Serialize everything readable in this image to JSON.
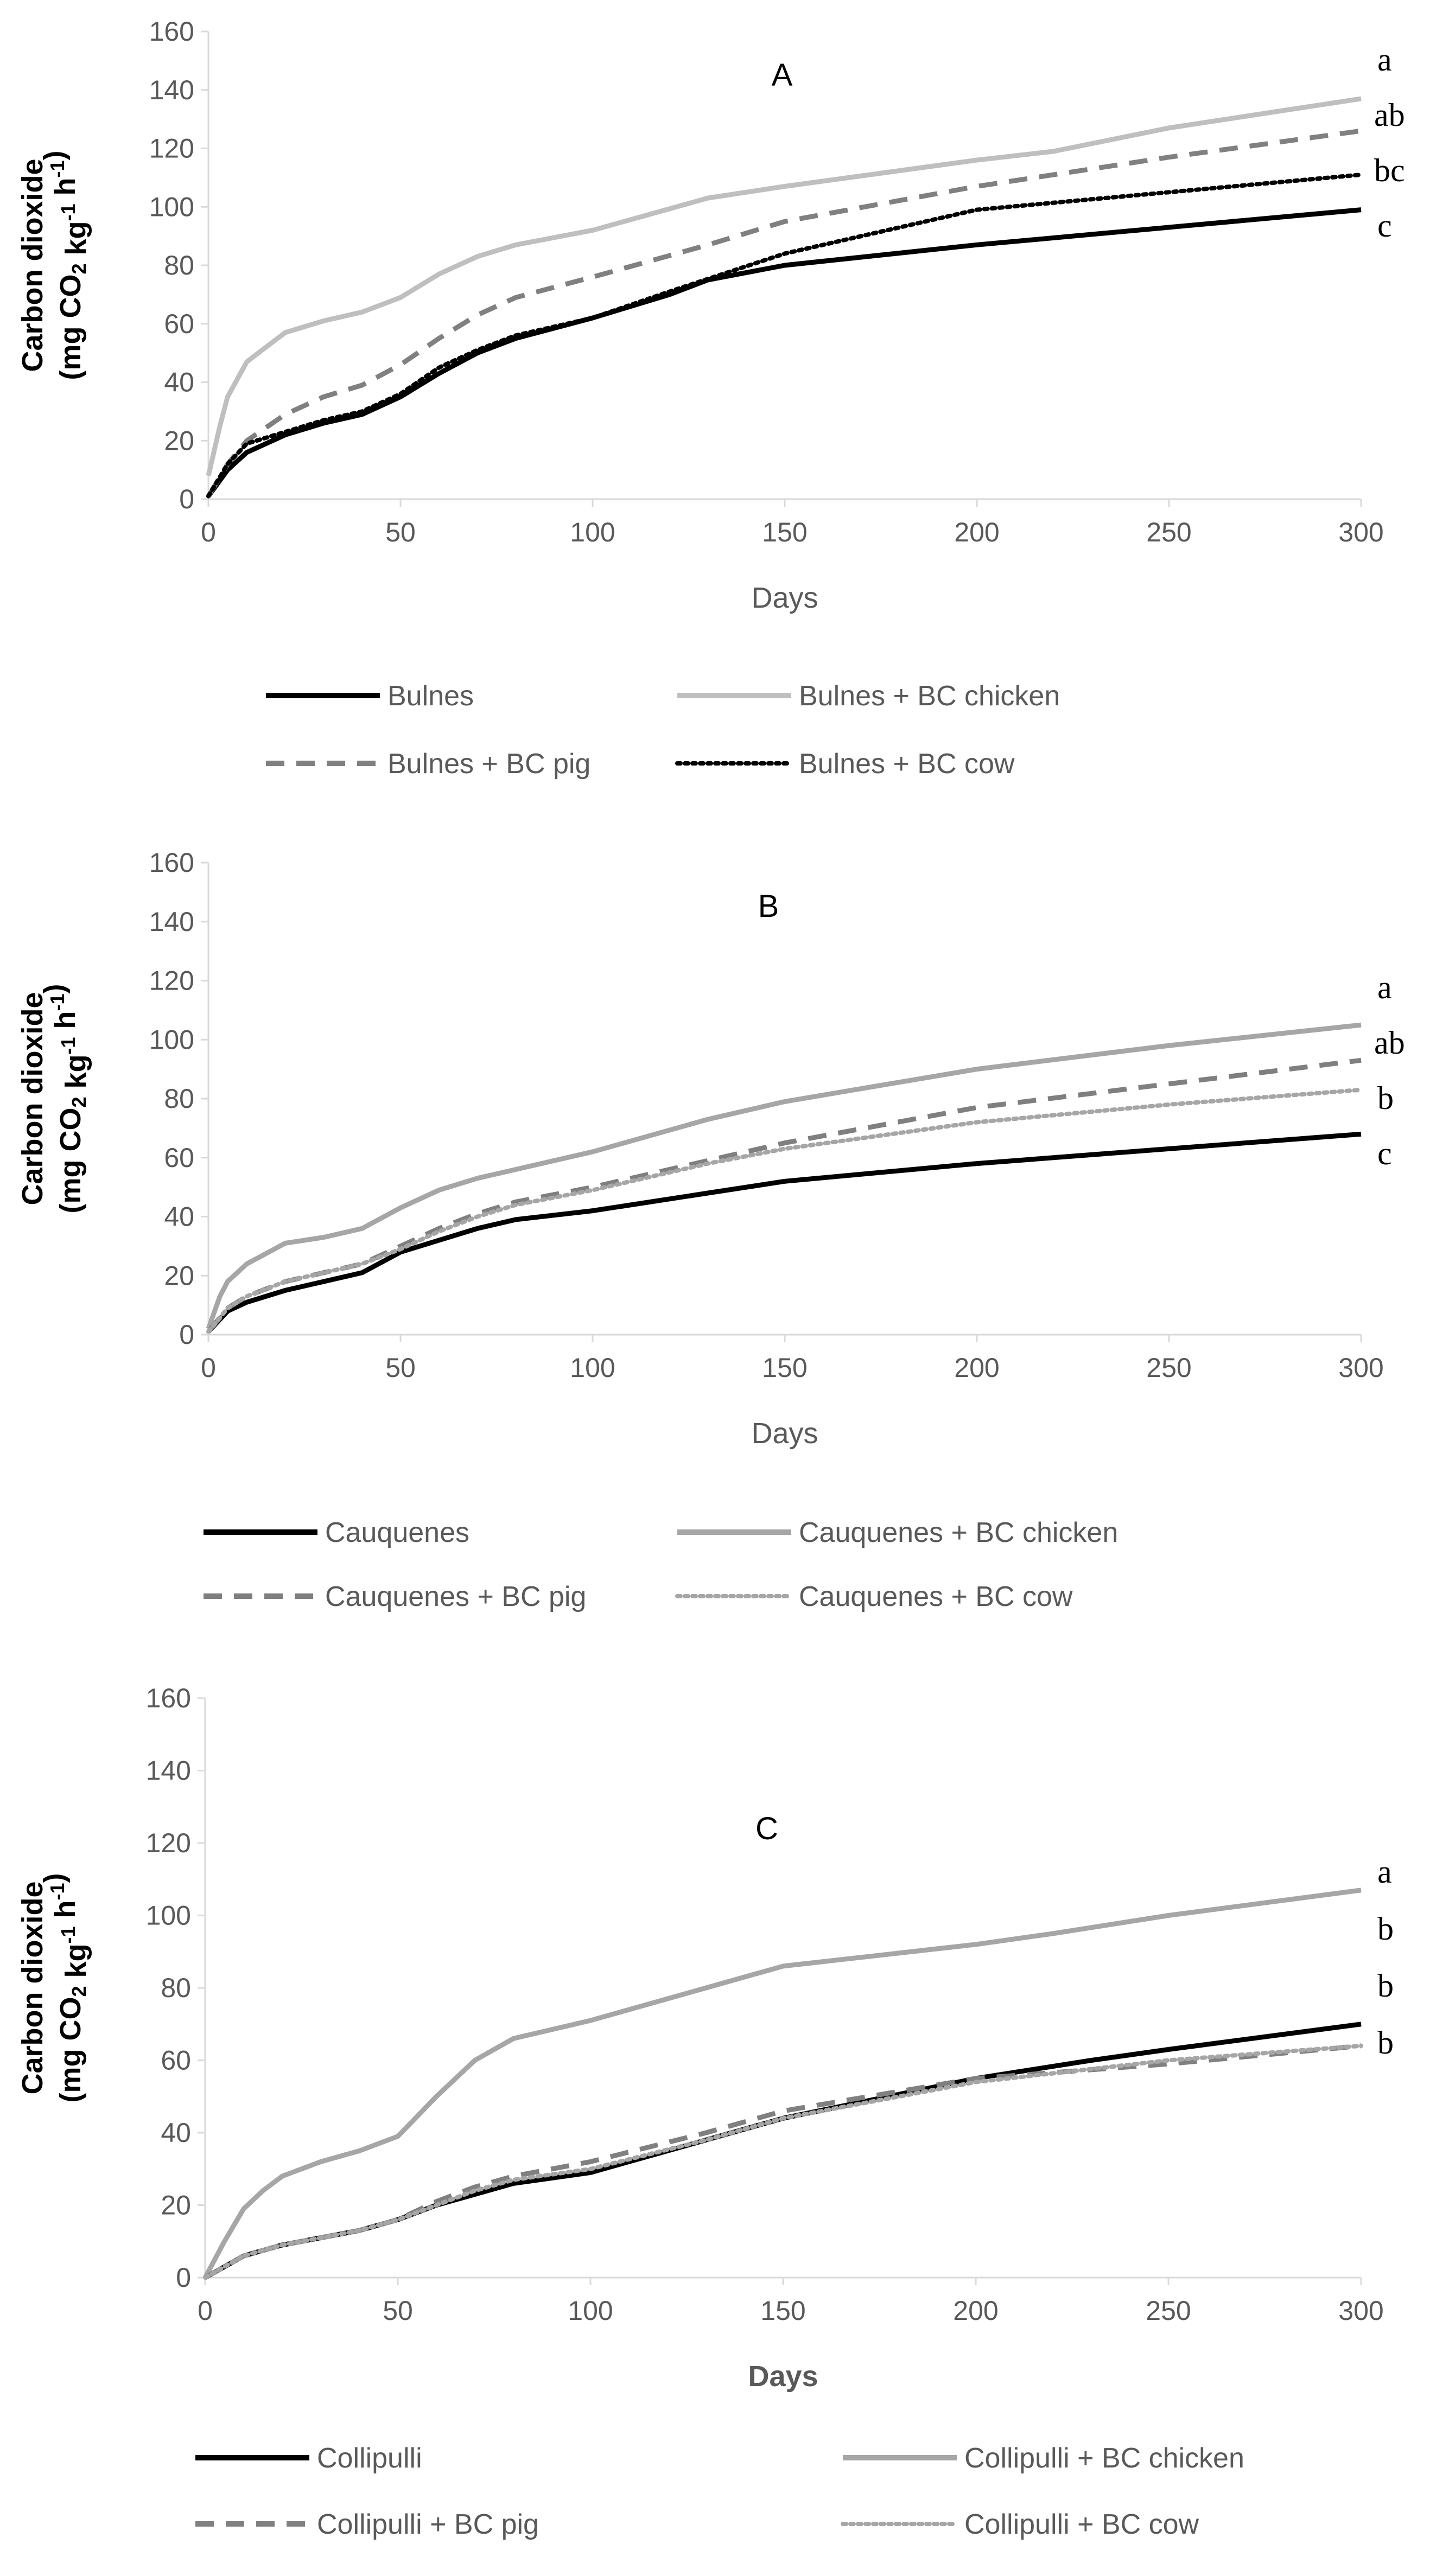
{
  "figure": {
    "colors": {
      "axis": "#d9d9d9",
      "tick_text": "#595959",
      "label_text": "#000000",
      "black": "#000000",
      "light_gray": "#bfbfbf",
      "mid_gray": "#808080",
      "dark_gray": "#7f7f7f"
    }
  },
  "chart_data": [
    {
      "type": "line",
      "title": "A",
      "xlabel": "Days",
      "ylabel_line1": "Carbon dioxide",
      "ylabel_line2": "(mg CO2 kg-1 h-1)",
      "xlim": [
        0,
        300
      ],
      "ylim": [
        0,
        160
      ],
      "xticks": [
        0,
        50,
        100,
        150,
        200,
        250,
        300
      ],
      "yticks": [
        0,
        20,
        40,
        60,
        80,
        100,
        120,
        140,
        160
      ],
      "grid": false,
      "legend_position": "bottom",
      "series": [
        {
          "name": "Bulnes",
          "style": "solid",
          "color": "#000000",
          "x": [
            0,
            5,
            10,
            20,
            30,
            40,
            50,
            60,
            70,
            80,
            100,
            120,
            130,
            150,
            200,
            250,
            300
          ],
          "values": [
            1,
            10,
            16,
            22,
            26,
            29,
            35,
            43,
            50,
            55,
            62,
            70,
            75,
            80,
            87,
            93,
            99
          ],
          "significance": "c"
        },
        {
          "name": "Bulnes + BC chicken",
          "style": "solid",
          "color": "#bfbfbf",
          "x": [
            0,
            3,
            5,
            10,
            15,
            20,
            30,
            40,
            50,
            60,
            70,
            80,
            100,
            130,
            150,
            200,
            220,
            250,
            300
          ],
          "values": [
            8,
            25,
            35,
            47,
            52,
            57,
            61,
            64,
            69,
            77,
            83,
            87,
            92,
            103,
            107,
            116,
            119,
            127,
            137
          ],
          "significance": "a"
        },
        {
          "name": "Bulnes + BC pig",
          "style": "dashed",
          "color": "#808080",
          "x": [
            0,
            5,
            10,
            20,
            30,
            40,
            50,
            60,
            70,
            80,
            100,
            130,
            150,
            200,
            250,
            300
          ],
          "values": [
            1,
            12,
            20,
            29,
            35,
            39,
            46,
            55,
            63,
            69,
            76,
            87,
            95,
            107,
            117,
            126
          ],
          "significance": "ab"
        },
        {
          "name": "Bulnes + BC cow",
          "style": "dotted",
          "color": "#000000",
          "x": [
            0,
            5,
            10,
            20,
            30,
            40,
            50,
            60,
            70,
            80,
            100,
            120,
            150,
            200,
            250,
            300
          ],
          "values": [
            1,
            12,
            19,
            23,
            27,
            30,
            36,
            45,
            51,
            56,
            62,
            71,
            84,
            99,
            105,
            111
          ],
          "significance": "bc"
        }
      ],
      "legend": [
        {
          "label": "Bulnes",
          "style": "solid",
          "color": "#000000"
        },
        {
          "label": "Bulnes + BC chicken",
          "style": "solid",
          "color": "#bfbfbf"
        },
        {
          "label": "Bulnes + BC pig",
          "style": "dashed",
          "color": "#808080"
        },
        {
          "label": "Bulnes + BC cow",
          "style": "dotted",
          "color": "#000000"
        }
      ]
    },
    {
      "type": "line",
      "title": "B",
      "xlabel": "Days",
      "ylabel_line1": "Carbon dioxide",
      "ylabel_line2": "(mg CO2 kg-1 h-1)",
      "xlim": [
        0,
        300
      ],
      "ylim": [
        0,
        160
      ],
      "xticks": [
        0,
        50,
        100,
        150,
        200,
        250,
        300
      ],
      "yticks": [
        0,
        20,
        40,
        60,
        80,
        100,
        120,
        140,
        160
      ],
      "grid": false,
      "legend_position": "bottom",
      "series": [
        {
          "name": "Cauquenes",
          "style": "solid",
          "color": "#000000",
          "x": [
            0,
            5,
            10,
            20,
            30,
            40,
            50,
            60,
            70,
            80,
            100,
            130,
            150,
            200,
            250,
            300
          ],
          "values": [
            1,
            8,
            11,
            15,
            18,
            21,
            28,
            32,
            36,
            39,
            42,
            48,
            52,
            58,
            63,
            68
          ],
          "significance": "c"
        },
        {
          "name": "Cauquenes + BC chicken",
          "style": "solid",
          "color": "#a6a6a6",
          "x": [
            0,
            3,
            5,
            10,
            20,
            30,
            40,
            50,
            60,
            70,
            80,
            100,
            130,
            150,
            200,
            250,
            300
          ],
          "values": [
            2,
            13,
            18,
            24,
            31,
            33,
            36,
            43,
            49,
            53,
            56,
            62,
            73,
            79,
            90,
            98,
            105
          ],
          "significance": "a"
        },
        {
          "name": "Cauquenes + BC pig",
          "style": "dashed",
          "color": "#7f7f7f",
          "x": [
            0,
            5,
            10,
            20,
            30,
            40,
            50,
            60,
            70,
            80,
            100,
            130,
            150,
            200,
            250,
            300
          ],
          "values": [
            1,
            9,
            13,
            18,
            21,
            24,
            30,
            36,
            41,
            45,
            50,
            59,
            65,
            77,
            85,
            93
          ],
          "significance": "ab"
        },
        {
          "name": "Cauquenes + BC cow",
          "style": "dotted",
          "color": "#a6a6a6",
          "x": [
            0,
            5,
            10,
            20,
            30,
            40,
            50,
            60,
            70,
            80,
            100,
            130,
            150,
            200,
            250,
            300
          ],
          "values": [
            1,
            9,
            13,
            18,
            21,
            24,
            29,
            35,
            40,
            44,
            49,
            58,
            63,
            72,
            78,
            83
          ],
          "significance": "b"
        }
      ],
      "legend": [
        {
          "label": "Cauquenes",
          "style": "solid",
          "color": "#000000"
        },
        {
          "label": "Cauquenes + BC chicken",
          "style": "solid",
          "color": "#a6a6a6"
        },
        {
          "label": "Cauquenes + BC pig",
          "style": "dashed",
          "color": "#7f7f7f"
        },
        {
          "label": "Cauquenes + BC cow",
          "style": "dotted",
          "color": "#a6a6a6"
        }
      ]
    },
    {
      "type": "line",
      "title": "C",
      "xlabel": "Days",
      "ylabel_line1": "Carbon dioxide",
      "ylabel_line2": "(mg CO2 kg-1 h-1)",
      "xlim": [
        0,
        300
      ],
      "ylim": [
        0,
        160
      ],
      "xticks": [
        0,
        50,
        100,
        150,
        200,
        250,
        300
      ],
      "yticks": [
        0,
        20,
        40,
        60,
        80,
        100,
        120,
        140,
        160
      ],
      "grid": false,
      "legend_position": "bottom",
      "series": [
        {
          "name": "Collipulli",
          "style": "solid",
          "color": "#000000",
          "x": [
            0,
            5,
            10,
            20,
            30,
            40,
            50,
            60,
            70,
            80,
            100,
            130,
            150,
            200,
            230,
            250,
            300
          ],
          "values": [
            0,
            3,
            6,
            9,
            11,
            13,
            16,
            20,
            23,
            26,
            29,
            38,
            44,
            55,
            60,
            63,
            70
          ],
          "significance": "b"
        },
        {
          "name": "Collipulli + BC chicken",
          "style": "solid",
          "color": "#a6a6a6",
          "x": [
            0,
            5,
            10,
            15,
            20,
            30,
            40,
            50,
            60,
            70,
            80,
            100,
            130,
            150,
            200,
            220,
            250,
            300
          ],
          "values": [
            0,
            10,
            19,
            24,
            28,
            32,
            35,
            39,
            50,
            60,
            66,
            71,
            80,
            86,
            92,
            95,
            100,
            107
          ],
          "significance": "a"
        },
        {
          "name": "Collipulli + BC pig",
          "style": "dashed",
          "color": "#808080",
          "x": [
            0,
            5,
            10,
            20,
            30,
            40,
            50,
            60,
            70,
            80,
            100,
            130,
            150,
            200,
            250,
            300
          ],
          "values": [
            0,
            3,
            6,
            9,
            11,
            13,
            16,
            21,
            25,
            28,
            32,
            40,
            46,
            55,
            59,
            64
          ],
          "significance": "b"
        },
        {
          "name": "Collipulli + BC cow",
          "style": "dotted",
          "color": "#a6a6a6",
          "x": [
            0,
            5,
            10,
            20,
            30,
            40,
            50,
            60,
            70,
            80,
            100,
            130,
            150,
            200,
            250,
            300
          ],
          "values": [
            0,
            3,
            6,
            9,
            11,
            13,
            16,
            20,
            24,
            27,
            30,
            38,
            44,
            54,
            60,
            64
          ],
          "significance": "b"
        }
      ],
      "legend": [
        {
          "label": "Collipulli",
          "style": "solid",
          "color": "#000000"
        },
        {
          "label": "Collipulli + BC chicken",
          "style": "solid",
          "color": "#a6a6a6"
        },
        {
          "label": "Collipulli + BC pig",
          "style": "dashed",
          "color": "#808080"
        },
        {
          "label": "Collipulli + BC cow",
          "style": "dotted",
          "color": "#a6a6a6"
        }
      ]
    }
  ]
}
